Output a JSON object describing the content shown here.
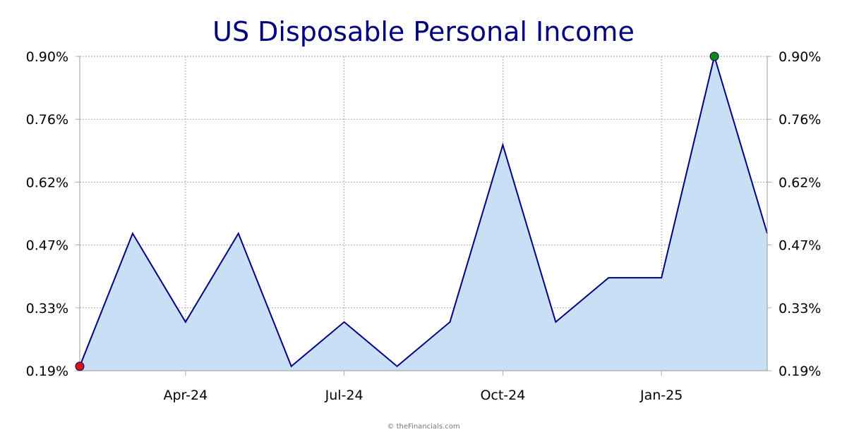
{
  "chart_data": {
    "type": "area",
    "title": "US Disposable Personal Income",
    "x": [
      "Feb-24",
      "Mar-24",
      "Apr-24",
      "May-24",
      "Jun-24",
      "Jul-24",
      "Aug-24",
      "Sep-24",
      "Oct-24",
      "Nov-24",
      "Dec-24",
      "Jan-25",
      "Feb-25",
      "Mar-25"
    ],
    "values": [
      0.2,
      0.5,
      0.3,
      0.5,
      0.2,
      0.3,
      0.2,
      0.3,
      0.7,
      0.3,
      0.4,
      0.4,
      0.9,
      0.5
    ],
    "x_tick_labels": [
      "Apr-24",
      "Jul-24",
      "Oct-24",
      "Jan-25"
    ],
    "y_tick_labels": [
      "0.90%",
      "0.76%",
      "0.62%",
      "0.47%",
      "0.33%",
      "0.19%"
    ],
    "ylim": [
      0.19,
      0.9
    ],
    "grid": true,
    "min_marker_index": 0,
    "max_marker_index": 12,
    "xlabel": "",
    "ylabel": ""
  },
  "credit": "© theFinancials.com",
  "colors": {
    "title": "#000080",
    "line": "#000080",
    "fill": "#c8dff5",
    "grid": "#aaaaaa",
    "min_marker": "#dd1111",
    "max_marker": "#118811"
  }
}
